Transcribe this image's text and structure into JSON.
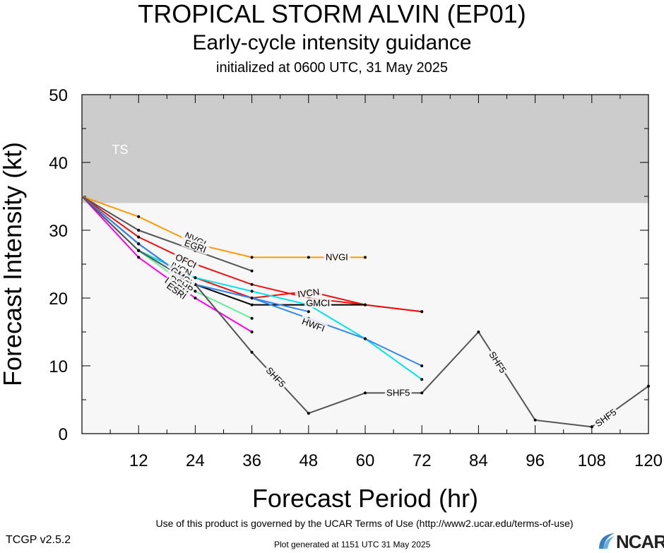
{
  "header": {
    "title": "TROPICAL STORM ALVIN (EP01)",
    "subtitle": "Early-cycle intensity guidance",
    "initialized": "initialized at 0600 UTC, 31 May 2025"
  },
  "footer": {
    "terms": "Use of this product is governed by the UCAR Terms of Use (http://www2.ucar.edu/terms-of-use)",
    "version": "TCGP v2.5.2",
    "generated": "Plot generated at 1151 UTC   31 May 2025",
    "logo_text": "NCAR"
  },
  "chart_data": {
    "type": "line",
    "xlabel": "Forecast Period (hr)",
    "ylabel": "Forecast Intensity (kt)",
    "xlim": [
      0,
      120
    ],
    "ylim": [
      0,
      50
    ],
    "xticks": [
      12,
      24,
      36,
      48,
      60,
      72,
      84,
      96,
      108,
      120
    ],
    "yticks": [
      0,
      10,
      20,
      30,
      40,
      50
    ],
    "bands": [
      {
        "label": "TS",
        "from": 34,
        "to": 50,
        "color": "#cccccc"
      },
      {
        "label": "",
        "from": 0,
        "to": 34,
        "color": "#f7f7f7"
      }
    ],
    "series": [
      {
        "name": "NVGI",
        "color": "#ff9900",
        "x": [
          0,
          12,
          24,
          36,
          48,
          60
        ],
        "y": [
          35,
          32,
          28,
          26,
          26,
          26
        ],
        "labels": [
          {
            "text": "NVGI",
            "x": 24,
            "y": 28.6
          },
          {
            "text": "NVGI",
            "x": 54,
            "y": 26
          }
        ]
      },
      {
        "name": "EGRI",
        "color": "#555555",
        "x": [
          0,
          12,
          24,
          36
        ],
        "y": [
          35,
          30,
          27,
          24
        ],
        "labels": [
          {
            "text": "EGRI",
            "x": 24,
            "y": 27.6
          }
        ]
      },
      {
        "name": "OFCI",
        "color": "#ee1111",
        "x": [
          0,
          12,
          24,
          36,
          48,
          60,
          72
        ],
        "y": [
          35,
          29,
          25,
          22,
          20,
          19,
          18
        ],
        "labels": [
          {
            "text": "OFCI",
            "x": 22,
            "y": 25.4
          }
        ]
      },
      {
        "name": "IVCN",
        "color": "#ee1111",
        "x": [
          0,
          12,
          24,
          36,
          48,
          60,
          72
        ],
        "y": [
          35,
          27,
          23,
          20,
          21,
          19,
          18
        ],
        "labels": [
          {
            "text": "IVCN",
            "x": 21,
            "y": 24.2
          },
          {
            "text": "IVCN",
            "x": 48,
            "y": 20.7
          }
        ]
      },
      {
        "name": "GMCI",
        "color": "#000000",
        "x": [
          0,
          12,
          24,
          36,
          48,
          60
        ],
        "y": [
          35,
          28,
          22,
          19,
          19,
          19
        ],
        "labels": [
          {
            "text": "GMCI",
            "x": 21,
            "y": 23.2
          },
          {
            "text": "GMCI",
            "x": 50,
            "y": 19.2
          }
        ]
      },
      {
        "name": "CTCI",
        "color": "#00e5e5",
        "x": [
          0,
          12,
          24,
          36,
          48,
          60,
          72
        ],
        "y": [
          35,
          27,
          23,
          21,
          19,
          14,
          8
        ],
        "labels": [
          {
            "text": "CTCI",
            "x": 21,
            "y": 22.4
          }
        ]
      },
      {
        "name": "DSHP",
        "color": "#3388ee",
        "x": [
          0,
          12,
          24,
          36,
          48
        ],
        "y": [
          35,
          27,
          22,
          20,
          18
        ],
        "labels": [
          {
            "text": "DSHP",
            "x": 21,
            "y": 22.0
          }
        ]
      },
      {
        "name": "HWFI",
        "color": "#3388ee",
        "x": [
          0,
          12,
          24,
          36,
          48,
          60,
          72
        ],
        "y": [
          35,
          28,
          22,
          20,
          17,
          14,
          10
        ],
        "labels": [
          {
            "text": "HWFI",
            "x": 49,
            "y": 16.0
          }
        ]
      },
      {
        "name": "LGEM",
        "color": "#66ee99",
        "x": [
          0,
          12,
          24,
          36
        ],
        "y": [
          35,
          27,
          21,
          17
        ],
        "labels": [
          {
            "text": "LGEM",
            "x": 20,
            "y": 21.6
          }
        ]
      },
      {
        "name": "ESRI",
        "color": "#ff00ee",
        "x": [
          0,
          12,
          24,
          36
        ],
        "y": [
          35,
          26,
          20,
          15
        ],
        "labels": [
          {
            "text": "ESRI",
            "x": 20,
            "y": 21.0
          }
        ]
      },
      {
        "name": "SHF5",
        "color": "#555555",
        "x": [
          0,
          12,
          24,
          36,
          48,
          60,
          72,
          84,
          96,
          108,
          120
        ],
        "y": [
          35,
          27,
          22,
          12,
          3,
          6,
          6,
          15,
          2,
          1,
          7
        ],
        "labels": [
          {
            "text": "SHF5",
            "x": 41,
            "y": 8.3
          },
          {
            "text": "SHF5",
            "x": 67,
            "y": 6
          },
          {
            "text": "SHF5",
            "x": 88,
            "y": 10.5
          },
          {
            "text": "SHF5",
            "x": 111,
            "y": 2.3
          }
        ]
      }
    ]
  }
}
